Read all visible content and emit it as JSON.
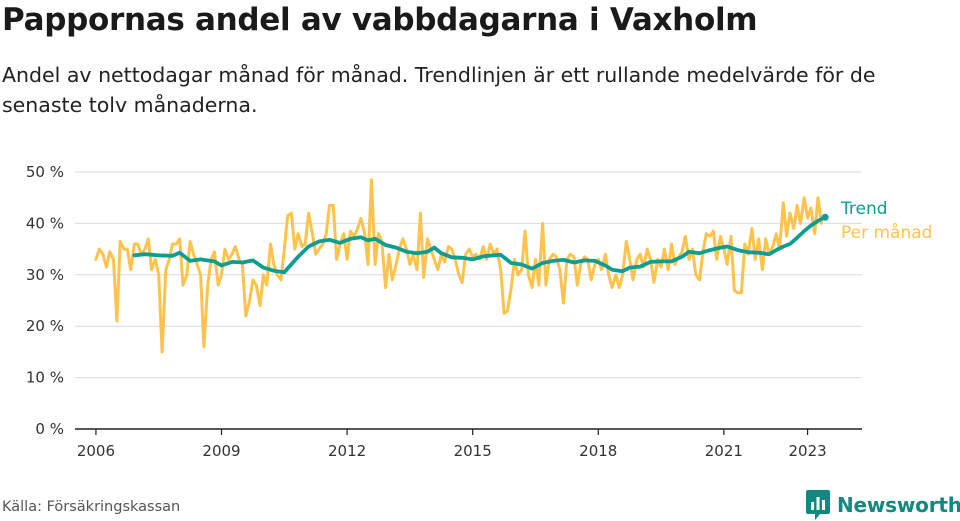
{
  "header": {
    "title": "Pappornas andel av vabbdagarna i Vaxholm",
    "subtitle": "Andel av nettodagar månad för månad. Trendlinjen är ett rullande medelvärde för de senaste tolv månaderna."
  },
  "footer": {
    "source": "Källa: Försäkringskassan",
    "brand": "Newsworthy",
    "brand_color": "#0f8a80"
  },
  "chart_data": {
    "type": "line",
    "x_unit": "year (decimal)",
    "xlim": [
      2005.5,
      2024.3
    ],
    "ylim": [
      0,
      50
    ],
    "x_ticks": [
      2006,
      2009,
      2012,
      2015,
      2018,
      2021,
      2023
    ],
    "x_tick_labels": [
      "2006",
      "2009",
      "2012",
      "2015",
      "2018",
      "2021",
      "2023"
    ],
    "y_ticks": [
      0,
      10,
      20,
      30,
      40,
      50
    ],
    "y_tick_labels": [
      "0 %",
      "10 %",
      "20 %",
      "30 %",
      "40 %",
      "50 %"
    ],
    "grid": "horizontal",
    "legend": "right, at end of lines",
    "series": [
      {
        "name": "Per månad",
        "color": "#ffc34d",
        "points": [
          [
            2006.0,
            33
          ],
          [
            2006.08,
            35
          ],
          [
            2006.17,
            34
          ],
          [
            2006.25,
            31.5
          ],
          [
            2006.33,
            34.5
          ],
          [
            2006.42,
            33
          ],
          [
            2006.5,
            21
          ],
          [
            2006.58,
            36.5
          ],
          [
            2006.67,
            35
          ],
          [
            2006.75,
            35
          ],
          [
            2006.83,
            31
          ],
          [
            2006.92,
            36
          ],
          [
            2007.0,
            36
          ],
          [
            2007.08,
            34
          ],
          [
            2007.17,
            35
          ],
          [
            2007.25,
            37
          ],
          [
            2007.33,
            31
          ],
          [
            2007.42,
            33
          ],
          [
            2007.5,
            30
          ],
          [
            2007.58,
            15
          ],
          [
            2007.67,
            31
          ],
          [
            2007.75,
            33
          ],
          [
            2007.83,
            36
          ],
          [
            2007.92,
            36
          ],
          [
            2008.0,
            37
          ],
          [
            2008.08,
            28
          ],
          [
            2008.17,
            30
          ],
          [
            2008.25,
            36.5
          ],
          [
            2008.33,
            34
          ],
          [
            2008.42,
            32
          ],
          [
            2008.5,
            30
          ],
          [
            2008.58,
            16
          ],
          [
            2008.67,
            28
          ],
          [
            2008.75,
            33
          ],
          [
            2008.83,
            34.5
          ],
          [
            2008.92,
            28
          ],
          [
            2009.0,
            30
          ],
          [
            2009.08,
            35
          ],
          [
            2009.17,
            33
          ],
          [
            2009.25,
            34
          ],
          [
            2009.33,
            35.5
          ],
          [
            2009.42,
            33
          ],
          [
            2009.5,
            32
          ],
          [
            2009.58,
            22
          ],
          [
            2009.67,
            25
          ],
          [
            2009.75,
            29
          ],
          [
            2009.83,
            28
          ],
          [
            2009.92,
            24
          ],
          [
            2010.0,
            30
          ],
          [
            2010.08,
            28
          ],
          [
            2010.17,
            36
          ],
          [
            2010.25,
            32
          ],
          [
            2010.33,
            30
          ],
          [
            2010.42,
            29
          ],
          [
            2010.5,
            35
          ],
          [
            2010.58,
            41.5
          ],
          [
            2010.67,
            42
          ],
          [
            2010.75,
            35
          ],
          [
            2010.83,
            38
          ],
          [
            2010.92,
            35.5
          ],
          [
            2011.0,
            36
          ],
          [
            2011.08,
            42
          ],
          [
            2011.17,
            38
          ],
          [
            2011.25,
            34
          ],
          [
            2011.33,
            35
          ],
          [
            2011.42,
            36
          ],
          [
            2011.5,
            38
          ],
          [
            2011.58,
            43.5
          ],
          [
            2011.67,
            43.5
          ],
          [
            2011.75,
            33
          ],
          [
            2011.83,
            36
          ],
          [
            2011.92,
            38
          ],
          [
            2012.0,
            33
          ],
          [
            2012.08,
            38.5
          ],
          [
            2012.17,
            37.5
          ],
          [
            2012.25,
            39
          ],
          [
            2012.33,
            41
          ],
          [
            2012.42,
            38
          ],
          [
            2012.5,
            32
          ],
          [
            2012.58,
            48.5
          ],
          [
            2012.67,
            32
          ],
          [
            2012.75,
            38
          ],
          [
            2012.83,
            36.5
          ],
          [
            2012.92,
            27.5
          ],
          [
            2013.0,
            34
          ],
          [
            2013.08,
            29
          ],
          [
            2013.17,
            32
          ],
          [
            2013.25,
            35
          ],
          [
            2013.33,
            37
          ],
          [
            2013.42,
            35
          ],
          [
            2013.5,
            32
          ],
          [
            2013.58,
            34
          ],
          [
            2013.67,
            31
          ],
          [
            2013.75,
            42
          ],
          [
            2013.83,
            29.5
          ],
          [
            2013.92,
            37
          ],
          [
            2014.0,
            35
          ],
          [
            2014.08,
            33
          ],
          [
            2014.17,
            31
          ],
          [
            2014.25,
            34
          ],
          [
            2014.33,
            32.5
          ],
          [
            2014.42,
            35.5
          ],
          [
            2014.5,
            35
          ],
          [
            2014.58,
            33
          ],
          [
            2014.67,
            30
          ],
          [
            2014.75,
            28.5
          ],
          [
            2014.83,
            34
          ],
          [
            2014.92,
            35
          ],
          [
            2015.0,
            33.5
          ],
          [
            2015.08,
            34
          ],
          [
            2015.17,
            33
          ],
          [
            2015.25,
            35.5
          ],
          [
            2015.33,
            33
          ],
          [
            2015.42,
            36
          ],
          [
            2015.5,
            34
          ],
          [
            2015.58,
            35
          ],
          [
            2015.67,
            31
          ],
          [
            2015.75,
            22.5
          ],
          [
            2015.83,
            23
          ],
          [
            2015.92,
            27.5
          ],
          [
            2016.0,
            33
          ],
          [
            2016.08,
            30
          ],
          [
            2016.17,
            31
          ],
          [
            2016.25,
            38.5
          ],
          [
            2016.33,
            30
          ],
          [
            2016.42,
            27.5
          ],
          [
            2016.5,
            33
          ],
          [
            2016.58,
            28
          ],
          [
            2016.67,
            40
          ],
          [
            2016.75,
            28
          ],
          [
            2016.83,
            33
          ],
          [
            2016.92,
            34
          ],
          [
            2017.0,
            33.5
          ],
          [
            2017.08,
            31
          ],
          [
            2017.17,
            24.5
          ],
          [
            2017.25,
            33
          ],
          [
            2017.33,
            34
          ],
          [
            2017.42,
            33.5
          ],
          [
            2017.5,
            28
          ],
          [
            2017.58,
            32
          ],
          [
            2017.67,
            33.5
          ],
          [
            2017.75,
            33
          ],
          [
            2017.83,
            29
          ],
          [
            2017.92,
            32
          ],
          [
            2018.0,
            33
          ],
          [
            2018.08,
            31
          ],
          [
            2018.17,
            34
          ],
          [
            2018.25,
            30
          ],
          [
            2018.33,
            27.5
          ],
          [
            2018.42,
            30
          ],
          [
            2018.5,
            27.5
          ],
          [
            2018.58,
            30
          ],
          [
            2018.67,
            36.5
          ],
          [
            2018.75,
            33
          ],
          [
            2018.83,
            29
          ],
          [
            2018.92,
            33
          ],
          [
            2019.0,
            34
          ],
          [
            2019.08,
            31.5
          ],
          [
            2019.17,
            35
          ],
          [
            2019.25,
            33
          ],
          [
            2019.33,
            28.5
          ],
          [
            2019.42,
            33
          ],
          [
            2019.5,
            31.5
          ],
          [
            2019.58,
            35
          ],
          [
            2019.67,
            31
          ],
          [
            2019.75,
            36
          ],
          [
            2019.83,
            32
          ],
          [
            2019.92,
            33.5
          ],
          [
            2020.0,
            34.5
          ],
          [
            2020.08,
            37.5
          ],
          [
            2020.17,
            33
          ],
          [
            2020.25,
            35
          ],
          [
            2020.33,
            30
          ],
          [
            2020.42,
            29
          ],
          [
            2020.5,
            34.5
          ],
          [
            2020.58,
            38
          ],
          [
            2020.67,
            37.5
          ],
          [
            2020.75,
            38.5
          ],
          [
            2020.83,
            33
          ],
          [
            2020.92,
            37.5
          ],
          [
            2021.0,
            35
          ],
          [
            2021.08,
            32
          ],
          [
            2021.17,
            37.5
          ],
          [
            2021.25,
            27
          ],
          [
            2021.33,
            26.5
          ],
          [
            2021.42,
            26.5
          ],
          [
            2021.5,
            36
          ],
          [
            2021.58,
            34
          ],
          [
            2021.67,
            39
          ],
          [
            2021.75,
            33
          ],
          [
            2021.83,
            37
          ],
          [
            2021.92,
            31
          ],
          [
            2022.0,
            37
          ],
          [
            2022.08,
            34
          ],
          [
            2022.17,
            35.5
          ],
          [
            2022.25,
            38
          ],
          [
            2022.33,
            35
          ],
          [
            2022.42,
            44
          ],
          [
            2022.5,
            37.5
          ],
          [
            2022.58,
            42
          ],
          [
            2022.67,
            39
          ],
          [
            2022.75,
            43.5
          ],
          [
            2022.83,
            40
          ],
          [
            2022.92,
            45
          ],
          [
            2023.0,
            41
          ],
          [
            2023.08,
            43
          ],
          [
            2023.17,
            38
          ],
          [
            2023.25,
            45
          ],
          [
            2023.33,
            40
          ]
        ]
      },
      {
        "name": "Trend",
        "color": "#0f9d8f",
        "points": [
          [
            2006.92,
            33.8
          ],
          [
            2007.17,
            34
          ],
          [
            2007.5,
            33.8
          ],
          [
            2007.83,
            33.7
          ],
          [
            2008.0,
            34.3
          ],
          [
            2008.25,
            32.7
          ],
          [
            2008.5,
            33
          ],
          [
            2008.83,
            32.6
          ],
          [
            2009.0,
            31.8
          ],
          [
            2009.25,
            32.5
          ],
          [
            2009.5,
            32.4
          ],
          [
            2009.75,
            32.8
          ],
          [
            2010.0,
            31.4
          ],
          [
            2010.25,
            30.8
          ],
          [
            2010.5,
            30.5
          ],
          [
            2010.83,
            33.5
          ],
          [
            2011.08,
            35.5
          ],
          [
            2011.33,
            36.5
          ],
          [
            2011.58,
            36.8
          ],
          [
            2011.83,
            36.2
          ],
          [
            2012.08,
            37
          ],
          [
            2012.33,
            37.3
          ],
          [
            2012.5,
            36.7
          ],
          [
            2012.67,
            37
          ],
          [
            2012.92,
            35.8
          ],
          [
            2013.17,
            35.3
          ],
          [
            2013.42,
            34.5
          ],
          [
            2013.67,
            34.2
          ],
          [
            2013.92,
            34.5
          ],
          [
            2014.08,
            35.3
          ],
          [
            2014.25,
            34.2
          ],
          [
            2014.5,
            33.4
          ],
          [
            2014.75,
            33.3
          ],
          [
            2015.0,
            33
          ],
          [
            2015.25,
            33.6
          ],
          [
            2015.5,
            33.8
          ],
          [
            2015.67,
            33.9
          ],
          [
            2015.92,
            32.3
          ],
          [
            2016.17,
            32
          ],
          [
            2016.42,
            31.2
          ],
          [
            2016.67,
            32.3
          ],
          [
            2016.92,
            32.7
          ],
          [
            2017.17,
            32.9
          ],
          [
            2017.42,
            32.4
          ],
          [
            2017.67,
            32.8
          ],
          [
            2017.92,
            32.7
          ],
          [
            2018.17,
            31.8
          ],
          [
            2018.33,
            31
          ],
          [
            2018.58,
            30.7
          ],
          [
            2018.75,
            31.4
          ],
          [
            2019.0,
            31.6
          ],
          [
            2019.25,
            32.5
          ],
          [
            2019.5,
            32.6
          ],
          [
            2019.75,
            32.6
          ],
          [
            2020.0,
            33.5
          ],
          [
            2020.17,
            34.5
          ],
          [
            2020.42,
            34.2
          ],
          [
            2020.67,
            34.8
          ],
          [
            2020.92,
            35.3
          ],
          [
            2021.08,
            35.5
          ],
          [
            2021.33,
            34.8
          ],
          [
            2021.58,
            34.4
          ],
          [
            2021.83,
            34.3
          ],
          [
            2022.08,
            34
          ],
          [
            2022.25,
            34.8
          ],
          [
            2022.42,
            35.5
          ],
          [
            2022.58,
            36
          ],
          [
            2022.75,
            37.2
          ],
          [
            2022.92,
            38.5
          ],
          [
            2023.08,
            39.6
          ],
          [
            2023.25,
            40.5
          ],
          [
            2023.42,
            41.2
          ]
        ]
      }
    ]
  }
}
